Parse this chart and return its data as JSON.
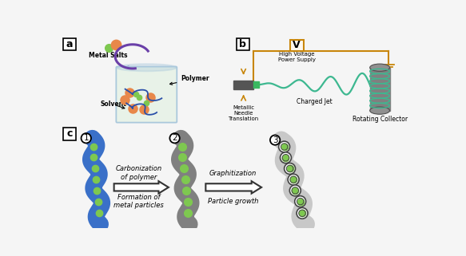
{
  "bg_color": "#f5f5f5",
  "panel_a": {
    "label": "a",
    "metal_salts_label": "Metal Salts",
    "polymer_label": "Polymer",
    "solvent_label": "Solvent",
    "dot_green_color": "#7ec850",
    "dot_orange_color": "#e8884a",
    "container_fill": "#e8f2e8",
    "container_edge": "#aac8dc",
    "arrow_color": "#6a3fa8",
    "polymer_line_color": "#2a4fa8"
  },
  "panel_b": {
    "label": "b",
    "voltage_label": "V",
    "hv_label": "High Voltage\nPower Supply",
    "needle_label": "Metallic\nNeedle\nTranslation",
    "jet_label": "Charged Jet",
    "collector_label": "Rotating Collector",
    "wire_color": "#c8860a",
    "jet_color": "#3db890",
    "needle_color": "#555555",
    "needle_tip_color": "#3ab860",
    "collector_body_color": "#808080",
    "collector_stripe_color": "#3db890"
  },
  "panel_c": {
    "label": "c",
    "step1": "1",
    "step2": "2",
    "step3": "3",
    "text_carbonization": "Carbonization\nof polymer",
    "text_formation": "Formation of\nmetal particles",
    "text_graphitization": "Graphitization",
    "text_particle": "Particle growth",
    "fiber1_color": "#3a70c8",
    "fiber2_color": "#808080",
    "fiber3_color": "#c8c8c8",
    "dot_color": "#7ec850",
    "graphene_edge_color": "#444444",
    "arrow_fill": "#ffffff",
    "arrow_edge": "#333333"
  }
}
